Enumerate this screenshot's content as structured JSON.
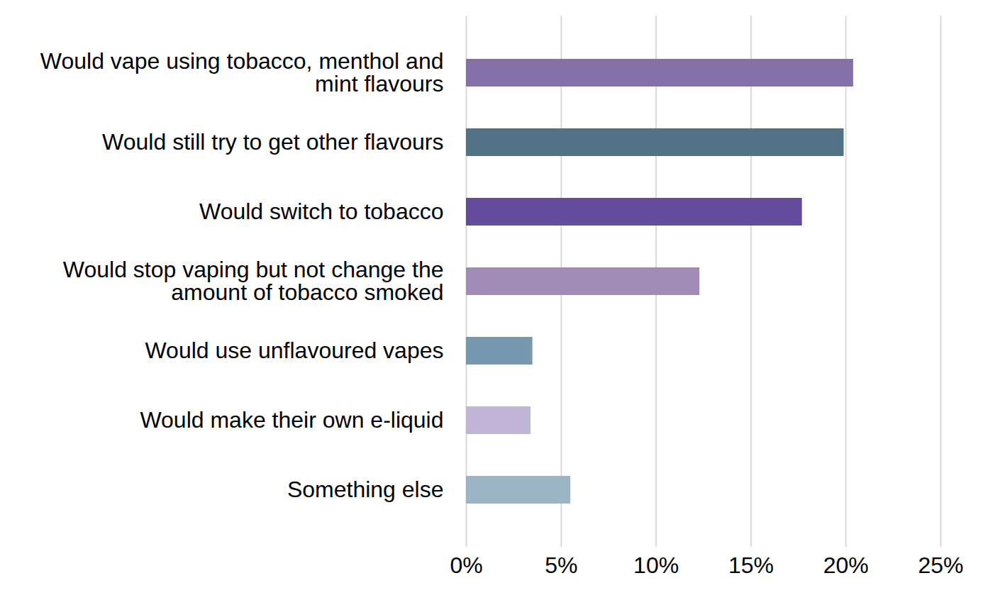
{
  "chart_data": {
    "type": "bar",
    "orientation": "horizontal",
    "categories": [
      "Would vape using tobacco, menthol and mint flavours",
      "Would still try to get other flavours",
      "Would switch to tobacco",
      "Would stop vaping but not change the amount of tobacco smoked",
      "Would use unflavoured vapes",
      "Would make their own e-liquid",
      "Something else"
    ],
    "values": [
      20.4,
      19.9,
      17.7,
      12.3,
      3.5,
      3.4,
      5.5
    ],
    "colors": [
      "#8670a8",
      "#527386",
      "#654b9b",
      "#a08cb7",
      "#7699b0",
      "#c1b5d7",
      "#9bb5c6"
    ],
    "xlim": [
      0,
      25
    ],
    "xticks": [
      {
        "value": 0,
        "label": "0%"
      },
      {
        "value": 5,
        "label": "5%"
      },
      {
        "value": 10,
        "label": "10%"
      },
      {
        "value": 15,
        "label": "15%"
      },
      {
        "value": 20,
        "label": "20%"
      },
      {
        "value": 25,
        "label": "25%"
      }
    ],
    "grid": true
  }
}
